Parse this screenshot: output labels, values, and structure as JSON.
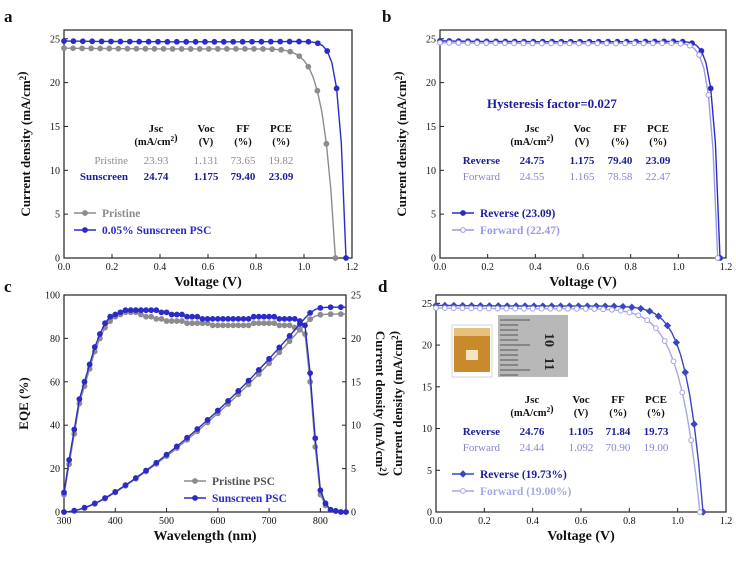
{
  "colors": {
    "pristine": "#8c8c8c",
    "sunscreen": "#2b2bc8",
    "reverse": "#2b2bc8",
    "forward": "#9a9ae6",
    "reverse_d": "#3a48c0",
    "forward_d": "#a4a8e0",
    "table_dark_blue": "#1c1c9c",
    "table_light": "#8686d2",
    "text": "#111111"
  },
  "chart_data": [
    {
      "panel": "a",
      "type": "line",
      "xlabel": "Voltage (V)",
      "ylabel": "Current density (mA/cm²)",
      "xlim": [
        0.0,
        1.2
      ],
      "ylim": [
        0,
        26
      ],
      "xticks": [
        "0.0",
        "0.2",
        "0.4",
        "0.6",
        "0.8",
        "1.0",
        "1.2"
      ],
      "yticks": [
        "0",
        "5",
        "10",
        "15",
        "20",
        "25"
      ],
      "legend_position": "bottom-left",
      "series": [
        {
          "name": "Pristine",
          "color_key": "pristine",
          "jsc": 23.93,
          "voc": 1.131,
          "ff": 73.65,
          "open": false,
          "marker": "circle"
        },
        {
          "name": "0.05% Sunscreen PSC",
          "color_key": "sunscreen",
          "jsc": 24.74,
          "voc": 1.175,
          "ff": 79.4,
          "open": false,
          "marker": "circle"
        }
      ],
      "table": {
        "headers": [
          [
            "Jsc",
            "(mA/cm²)"
          ],
          [
            "Voc",
            "(V)"
          ],
          [
            "FF",
            "(%)"
          ],
          [
            "PCE",
            "(%)"
          ]
        ],
        "rows": [
          {
            "label": "Pristine",
            "values": [
              "23.93",
              "1.131",
              "73.65",
              "19.82"
            ],
            "style": "gray"
          },
          {
            "label": "Sunscreen",
            "values": [
              "24.74",
              "1.175",
              "79.40",
              "23.09"
            ],
            "style": "blue"
          }
        ]
      }
    },
    {
      "panel": "b",
      "type": "line",
      "xlabel": "Voltage (V)",
      "ylabel": "Current density (mA/cm²)",
      "xlim": [
        0.0,
        1.2
      ],
      "ylim": [
        0,
        26
      ],
      "xticks": [
        "0.0",
        "0.2",
        "0.4",
        "0.6",
        "0.8",
        "1.0",
        "1.2"
      ],
      "yticks": [
        "0",
        "5",
        "10",
        "15",
        "20",
        "25"
      ],
      "annotation": "Hysteresis factor=0.027",
      "legend_position": "bottom-left",
      "series": [
        {
          "name": "Reverse (23.09)",
          "color_key": "reverse",
          "jsc": 24.75,
          "voc": 1.175,
          "ff": 79.4,
          "open": false,
          "marker": "circle"
        },
        {
          "name": "Forward (22.47)",
          "color_key": "forward",
          "jsc": 24.55,
          "voc": 1.165,
          "ff": 78.58,
          "open": true,
          "marker": "circle"
        }
      ],
      "table": {
        "headers": [
          [
            "Jsc",
            "(mA/cm²)"
          ],
          [
            "Voc",
            "(V)"
          ],
          [
            "FF",
            "(%)"
          ],
          [
            "PCE",
            "(%)"
          ]
        ],
        "rows": [
          {
            "label": "Reverse",
            "values": [
              "24.75",
              "1.175",
              "79.40",
              "23.09"
            ],
            "style": "blue"
          },
          {
            "label": "Forward",
            "values": [
              "24.55",
              "1.165",
              "78.58",
              "22.47"
            ],
            "style": "light"
          }
        ]
      }
    },
    {
      "panel": "c",
      "type": "line",
      "xlabel": "Wavelength (nm)",
      "ylabel": "EQE (%)",
      "y2label": "Current density (mA/cm²)",
      "xlim": [
        300,
        850
      ],
      "ylim": [
        0,
        100
      ],
      "y2lim": [
        0,
        25
      ],
      "xticks": [
        "300",
        "400",
        "500",
        "600",
        "700",
        "800"
      ],
      "yticks": [
        "0",
        "20",
        "40",
        "60",
        "80",
        "100"
      ],
      "y2ticks": [
        "0",
        "5",
        "10",
        "15",
        "20",
        "25"
      ],
      "legend_position": "bottom-right",
      "series": [
        {
          "name": "Pristine PSC",
          "color_key": "pristine",
          "x": [
            300,
            310,
            320,
            330,
            340,
            350,
            360,
            370,
            380,
            390,
            400,
            410,
            420,
            430,
            440,
            450,
            460,
            470,
            480,
            490,
            500,
            510,
            520,
            530,
            540,
            550,
            560,
            570,
            580,
            590,
            600,
            610,
            620,
            630,
            640,
            650,
            660,
            670,
            680,
            690,
            700,
            710,
            720,
            730,
            740,
            750,
            760,
            770,
            780,
            790,
            800,
            810,
            820,
            830,
            840,
            850
          ],
          "eqe": [
            8,
            22,
            36,
            50,
            58,
            66,
            74,
            80,
            85,
            88,
            90,
            91,
            92,
            92,
            92,
            91,
            90,
            90,
            89,
            89,
            88,
            88,
            88,
            88,
            87,
            87,
            87,
            87,
            87,
            86,
            86,
            86,
            86,
            86,
            86,
            86,
            86,
            87,
            87,
            87,
            87,
            87,
            86,
            86,
            86,
            85,
            84,
            82,
            60,
            30,
            8,
            3,
            1,
            0.5,
            0,
            0
          ],
          "integrated_end": 22.8
        },
        {
          "name": "Sunscreen PSC",
          "color_key": "sunscreen",
          "x": [
            300,
            310,
            320,
            330,
            340,
            350,
            360,
            370,
            380,
            390,
            400,
            410,
            420,
            430,
            440,
            450,
            460,
            470,
            480,
            490,
            500,
            510,
            520,
            530,
            540,
            550,
            560,
            570,
            580,
            590,
            600,
            610,
            620,
            630,
            640,
            650,
            660,
            670,
            680,
            690,
            700,
            710,
            720,
            730,
            740,
            750,
            760,
            770,
            780,
            790,
            800,
            810,
            820,
            830,
            840,
            850
          ],
          "eqe": [
            9,
            24,
            38,
            52,
            60,
            68,
            76,
            82,
            87,
            90,
            91,
            92,
            93,
            93,
            93,
            93,
            93,
            93,
            93,
            92,
            92,
            91,
            91,
            91,
            90,
            90,
            90,
            89,
            89,
            89,
            89,
            89,
            89,
            89,
            89,
            89,
            89,
            90,
            90,
            90,
            90,
            90,
            89,
            89,
            89,
            89,
            88,
            86,
            64,
            34,
            10,
            4,
            1,
            0.5,
            0,
            0
          ],
          "integrated_end": 23.6
        }
      ]
    },
    {
      "panel": "d",
      "type": "line",
      "xlabel": "Voltage (V)",
      "ylabel": "Current density (mA/cm²)",
      "xlim": [
        0.0,
        1.2
      ],
      "ylim": [
        0,
        26
      ],
      "xticks": [
        "0.0",
        "0.2",
        "0.4",
        "0.6",
        "0.8",
        "1.0",
        "1.2"
      ],
      "yticks": [
        "0",
        "5",
        "10",
        "15",
        "20",
        "25"
      ],
      "legend_position": "bottom-left",
      "series": [
        {
          "name": "Reverse (19.73%)",
          "color_key": "reverse_d",
          "jsc": 24.76,
          "voc": 1.105,
          "ff": 71.84,
          "open": false,
          "marker": "diamond"
        },
        {
          "name": "Forward (19.00%)",
          "color_key": "forward_d",
          "jsc": 24.44,
          "voc": 1.092,
          "ff": 70.9,
          "open": true,
          "marker": "circle"
        }
      ],
      "table": {
        "headers": [
          [
            "Jsc",
            "(mA/cm²)"
          ],
          [
            "Voc",
            "(V)"
          ],
          [
            "FF",
            "(%)"
          ],
          [
            "PCE",
            "(%)"
          ]
        ],
        "rows": [
          {
            "label": "Reverse",
            "values": [
              "24.76",
              "1.105",
              "71.84",
              "19.73"
            ],
            "style": "blue"
          },
          {
            "label": "Forward",
            "values": [
              "24.44",
              "1.092",
              "70.90",
              "19.00"
            ],
            "style": "light"
          }
        ]
      },
      "inset_ruler_labels": [
        "10",
        "11"
      ]
    }
  ]
}
